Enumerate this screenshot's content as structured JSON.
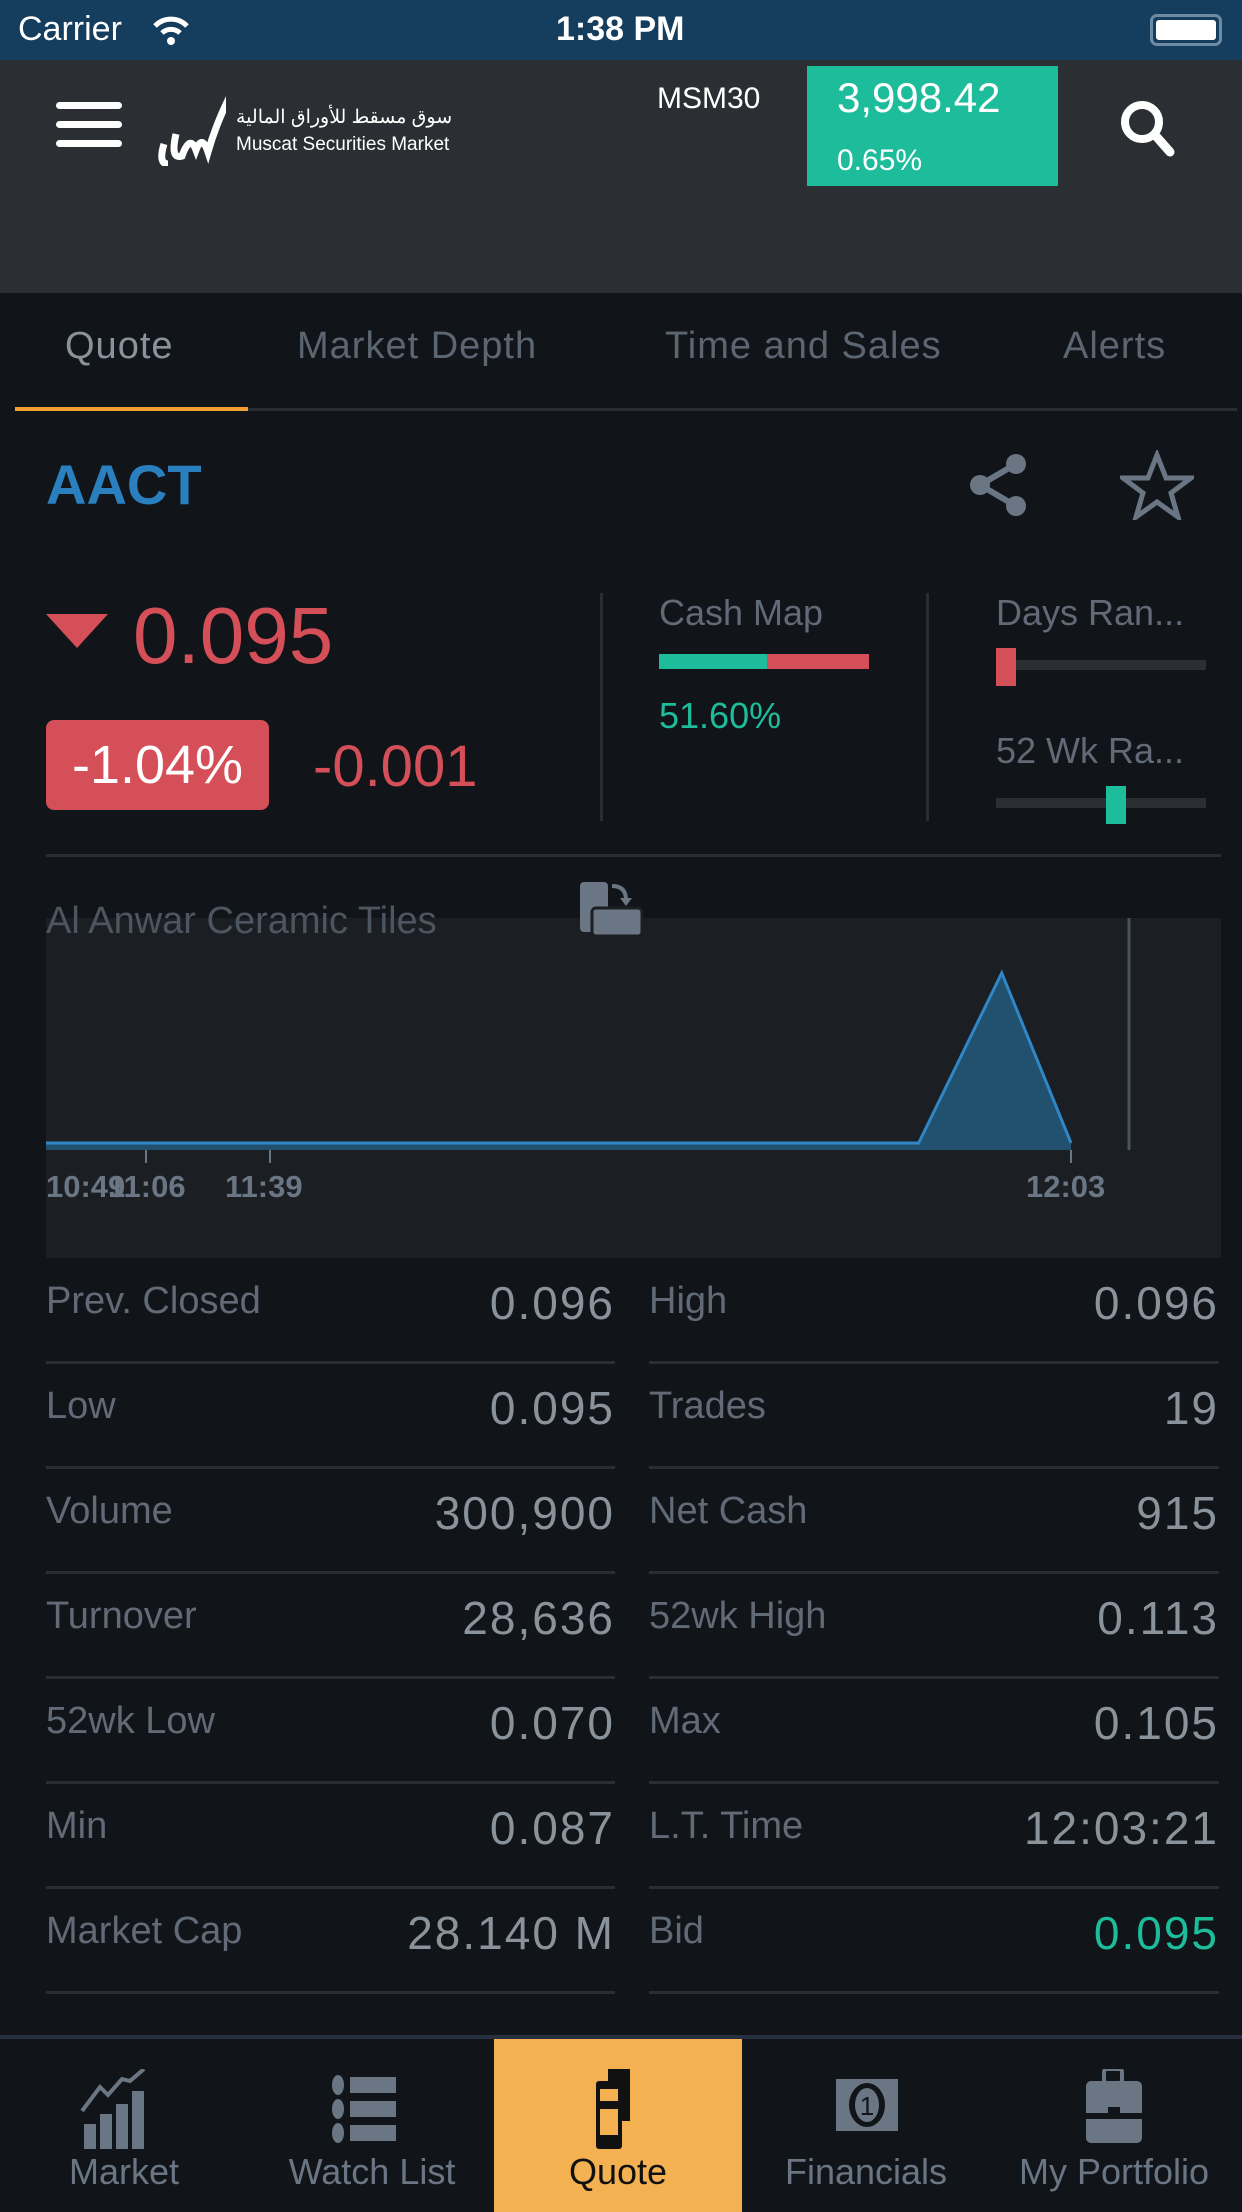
{
  "status_bar": {
    "carrier": "Carrier",
    "time": "1:38 PM"
  },
  "header": {
    "logo_text": "Muscat Securities Market",
    "logo_arabic": "سوق مسقط للأوراق المالية",
    "index_name": "MSM30",
    "index_value": "3,998.42",
    "index_change": "0.65%",
    "accent": "#1dbc9b"
  },
  "tabs": [
    {
      "label": "Quote",
      "active": true
    },
    {
      "label": "Market Depth"
    },
    {
      "label": "Time and Sales"
    },
    {
      "label": "Alerts"
    }
  ],
  "quote": {
    "symbol": "AACT",
    "price": "0.095",
    "direction": "down",
    "change_pct": "-1.04%",
    "change": "-0.001",
    "cash_map_label": "Cash Map",
    "cash_map_value": "51.60%",
    "cash_map_fraction": 0.516,
    "days_range_label": "Days Ran...",
    "days_range_position": 0.0,
    "wk52_range_label": "52 Wk Ra...",
    "wk52_range_position": 0.58,
    "company_name": "Al Anwar Ceramic Tiles",
    "colors": {
      "down": "#d54f58",
      "up": "#1dbc9b"
    }
  },
  "chart": {
    "x_ticks": [
      "10:49",
      "11:06",
      "11:39",
      "12:03"
    ],
    "points": [
      {
        "t": "10:49",
        "v": 0.095
      },
      {
        "t": "11:52",
        "v": 0.095
      },
      {
        "t": "11:58",
        "v": 0.096
      },
      {
        "t": "12:03",
        "v": 0.095
      }
    ]
  },
  "stats": [
    {
      "l_label": "Prev. Closed",
      "l_value": "0.096",
      "r_label": "High",
      "r_value": "0.096"
    },
    {
      "l_label": "Low",
      "l_value": "0.095",
      "r_label": "Trades",
      "r_value": "19"
    },
    {
      "l_label": "Volume",
      "l_value": "300,900",
      "r_label": "Net Cash",
      "r_value": "915"
    },
    {
      "l_label": "Turnover",
      "l_value": "28,636",
      "r_label": "52wk High",
      "r_value": "0.113"
    },
    {
      "l_label": "52wk Low",
      "l_value": "0.070",
      "r_label": "Max",
      "r_value": "0.105"
    },
    {
      "l_label": "Min",
      "l_value": "0.087",
      "r_label": "L.T. Time",
      "r_value": "12:03:21"
    },
    {
      "l_label": "Market Cap",
      "l_value": "28.140 M",
      "r_label": "Bid",
      "r_value": "0.095"
    }
  ],
  "tab_bar": [
    {
      "label": "Market",
      "icon": "chart-icon"
    },
    {
      "label": "Watch List",
      "icon": "list-icon"
    },
    {
      "label": "Quote",
      "icon": "quote-icon",
      "active": true
    },
    {
      "label": "Financials",
      "icon": "money-icon"
    },
    {
      "label": "My Portfolio",
      "icon": "briefcase-icon"
    }
  ]
}
